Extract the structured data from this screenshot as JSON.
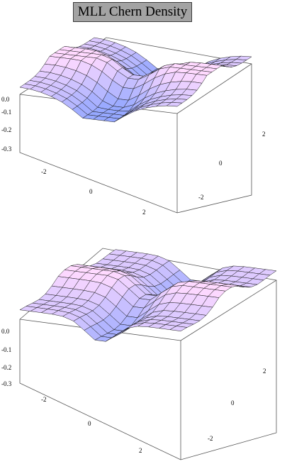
{
  "title": "MLL Chern Density",
  "chart_data": [
    {
      "type": "surface",
      "z_ticks": [
        "0.0",
        "-0.1",
        "-0.2",
        "-0.3"
      ],
      "x_ticks": [
        "-2",
        "0",
        "2"
      ],
      "y_ticks": [
        "2",
        "0",
        "-2"
      ],
      "z_range": [
        -0.3,
        0.0
      ],
      "x_range": [
        -3.14,
        3.14
      ],
      "y_range": [
        -3.14,
        3.14
      ],
      "mesh": "15x15",
      "colors": {
        "low": "#9aa8ff",
        "mid": "#e6d6ff",
        "high": "#ffe6f0",
        "mesh_line": "#000000",
        "box": "#333333"
      }
    },
    {
      "type": "surface",
      "z_ticks": [
        "0.0",
        "-0.1",
        "-0.2",
        "-0.3"
      ],
      "x_ticks": [
        "-2",
        "0",
        "2"
      ],
      "y_ticks": [
        "2",
        "0",
        "-2"
      ],
      "z_range": [
        -0.3,
        0.0
      ],
      "x_range": [
        -3.14,
        3.14
      ],
      "y_range": [
        -3.14,
        3.14
      ],
      "mesh": "15x15",
      "colors": {
        "low": "#9aa8ff",
        "mid": "#e6d6ff",
        "high": "#ffe6f0",
        "mesh_line": "#000000",
        "box": "#333333"
      }
    }
  ]
}
